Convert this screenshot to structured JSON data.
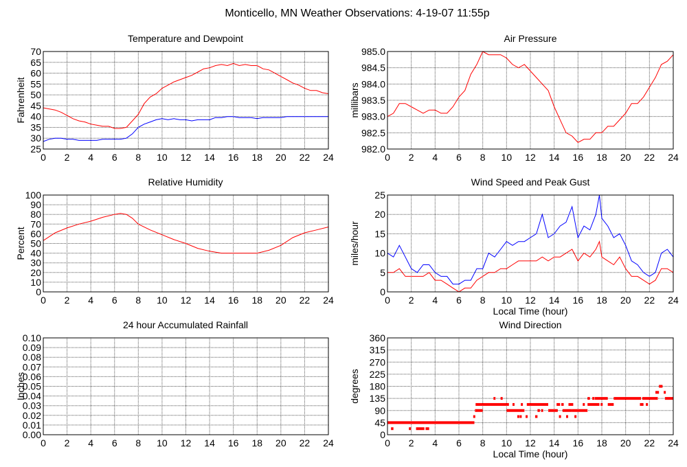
{
  "title": "Monticello, MN Weather Observations: 4-19-07 11:55p",
  "chart_data": [
    {
      "type": "line",
      "title": "Temperature and Dewpoint",
      "xlabel": "",
      "ylabel": "Fahrenheit",
      "xlim": [
        0,
        24
      ],
      "ylim": [
        25,
        70
      ],
      "xticks": [
        "0",
        "2",
        "4",
        "6",
        "8",
        "10",
        "12",
        "14",
        "16",
        "18",
        "20",
        "22",
        "24"
      ],
      "yticks": [
        "25",
        "30",
        "35",
        "40",
        "45",
        "50",
        "55",
        "60",
        "65",
        "70"
      ],
      "grid": true,
      "series": [
        {
          "name": "Temperature",
          "color": "#ff0000",
          "x": [
            0,
            0.5,
            1,
            1.5,
            2,
            2.5,
            3,
            3.5,
            4,
            4.5,
            5,
            5.5,
            6,
            6.5,
            7,
            7.5,
            8,
            8.5,
            9,
            9.5,
            10,
            10.5,
            11,
            11.5,
            12,
            12.5,
            13,
            13.5,
            14,
            14.5,
            15,
            15.5,
            16,
            16.5,
            17,
            17.5,
            18,
            18.5,
            19,
            19.5,
            20,
            20.5,
            21,
            21.5,
            22,
            22.5,
            23,
            23.5,
            24
          ],
          "y": [
            44,
            43.5,
            43,
            42,
            40.5,
            39,
            38,
            37.5,
            36.5,
            36,
            35.5,
            35.5,
            34.5,
            34.5,
            35,
            38,
            41,
            46,
            49,
            50.5,
            53,
            54.5,
            56,
            57,
            58,
            59,
            60.5,
            62,
            62.5,
            63.5,
            64,
            63.5,
            64.5,
            63.5,
            64,
            63.5,
            63.5,
            62,
            61.5,
            60,
            58.5,
            57,
            55.5,
            54.5,
            53,
            52,
            52,
            51,
            50.5
          ]
        },
        {
          "name": "Dewpoint",
          "color": "#0000ff",
          "x": [
            0,
            0.5,
            1,
            1.5,
            2,
            2.5,
            3,
            3.5,
            4,
            4.5,
            5,
            5.5,
            6,
            6.5,
            7,
            7.5,
            8,
            8.5,
            9,
            9.5,
            10,
            10.5,
            11,
            11.5,
            12,
            12.5,
            13,
            13.5,
            14,
            14.5,
            15,
            15.5,
            16,
            16.5,
            17,
            17.5,
            18,
            18.5,
            19,
            19.5,
            20,
            20.5,
            21,
            21.5,
            22,
            22.5,
            23,
            23.5,
            24
          ],
          "y": [
            28.5,
            29.5,
            30,
            30,
            29.5,
            29.5,
            29,
            29,
            29,
            29,
            29.5,
            29.5,
            29.5,
            29.5,
            30,
            32,
            35,
            36.5,
            37.5,
            38.5,
            39,
            38.5,
            39,
            38.5,
            38.5,
            38,
            38.5,
            38.5,
            38.5,
            39.5,
            39.5,
            40,
            40,
            39.5,
            39.5,
            39.5,
            39,
            39.5,
            39.5,
            39.5,
            39.5,
            40,
            40,
            40,
            40,
            40,
            40,
            40,
            40
          ]
        }
      ]
    },
    {
      "type": "line",
      "title": "Air Pressure",
      "xlabel": "",
      "ylabel": "millibars",
      "xlim": [
        0,
        24
      ],
      "ylim": [
        982.0,
        985.0
      ],
      "xticks": [
        "0",
        "2",
        "4",
        "6",
        "8",
        "10",
        "12",
        "14",
        "16",
        "18",
        "20",
        "22",
        "24"
      ],
      "yticks": [
        "982.0",
        "982.5",
        "983.0",
        "983.5",
        "984.0",
        "984.5",
        "985.0"
      ],
      "grid": true,
      "series": [
        {
          "name": "Pressure",
          "color": "#ff0000",
          "x": [
            0,
            0.5,
            1,
            1.5,
            2,
            2.5,
            3,
            3.5,
            4,
            4.5,
            5,
            5.5,
            6,
            6.5,
            7,
            7.5,
            8,
            8.5,
            9,
            9.5,
            10,
            10.5,
            11,
            11.5,
            12,
            12.5,
            13,
            13.5,
            14,
            14.5,
            15,
            15.5,
            16,
            16.5,
            17,
            17.5,
            18,
            18.5,
            19,
            19.5,
            20,
            20.5,
            21,
            21.5,
            22,
            22.5,
            23,
            23.5,
            24
          ],
          "y": [
            983.0,
            983.1,
            983.4,
            983.4,
            983.3,
            983.2,
            983.1,
            983.2,
            983.2,
            983.1,
            983.1,
            983.3,
            983.6,
            983.8,
            984.3,
            984.6,
            985.0,
            984.9,
            984.9,
            984.9,
            984.8,
            984.6,
            984.5,
            984.6,
            984.4,
            984.2,
            984.0,
            983.8,
            983.3,
            982.9,
            982.5,
            982.4,
            982.2,
            982.3,
            982.3,
            982.5,
            982.5,
            982.7,
            982.7,
            982.9,
            983.1,
            983.4,
            983.4,
            983.6,
            983.9,
            984.2,
            984.6,
            984.7,
            984.9
          ]
        }
      ]
    },
    {
      "type": "line",
      "title": "Relative Humidity",
      "xlabel": "",
      "ylabel": "Percent",
      "xlim": [
        0,
        24
      ],
      "ylim": [
        0,
        100
      ],
      "xticks": [
        "0",
        "2",
        "4",
        "6",
        "8",
        "10",
        "12",
        "14",
        "16",
        "18",
        "20",
        "22",
        "24"
      ],
      "yticks": [
        "0",
        "10",
        "20",
        "30",
        "40",
        "50",
        "60",
        "70",
        "80",
        "90",
        "100"
      ],
      "grid": true,
      "series": [
        {
          "name": "Relative Humidity",
          "color": "#ff0000",
          "x": [
            0,
            1,
            2,
            3,
            4,
            5,
            6,
            6.5,
            7,
            7.5,
            8,
            9,
            10,
            11,
            12,
            13,
            14,
            15,
            16,
            17,
            18,
            19,
            20,
            21,
            22,
            23,
            24
          ],
          "y": [
            53,
            61,
            66,
            70,
            73,
            77,
            80,
            81,
            80,
            76,
            70,
            64,
            59,
            54,
            50,
            45,
            42,
            40,
            40,
            40,
            40,
            43,
            48,
            56,
            61,
            64,
            67
          ]
        }
      ]
    },
    {
      "type": "line",
      "title": "Wind Speed and Peak Gust",
      "xlabel": "Local Time (hour)",
      "ylabel": "miles/hour",
      "xlim": [
        0,
        24
      ],
      "ylim": [
        0,
        25
      ],
      "xticks": [
        "0",
        "2",
        "4",
        "6",
        "8",
        "10",
        "12",
        "14",
        "16",
        "18",
        "20",
        "22",
        "24"
      ],
      "yticks": [
        "0",
        "5",
        "10",
        "15",
        "20",
        "25"
      ],
      "grid": true,
      "series": [
        {
          "name": "Peak Gust",
          "color": "#0000ff",
          "x": [
            0,
            0.5,
            1,
            1.5,
            2,
            2.5,
            3,
            3.5,
            4,
            4.5,
            5,
            5.5,
            6,
            6.5,
            7,
            7.5,
            8,
            8.5,
            9,
            9.5,
            10,
            10.5,
            11,
            11.5,
            12,
            12.5,
            13,
            13.5,
            14,
            14.5,
            15,
            15.5,
            16,
            16.5,
            17,
            17.5,
            17.8,
            18,
            18.5,
            19,
            19.5,
            20,
            20.5,
            21,
            21.5,
            22,
            22.5,
            23,
            23.5,
            24
          ],
          "y": [
            10,
            9,
            12,
            9,
            6,
            5,
            7,
            7,
            5,
            4,
            4,
            2,
            2,
            3,
            3,
            6,
            6,
            10,
            9,
            11,
            13,
            12,
            13,
            13,
            14,
            15,
            20,
            14,
            15,
            17,
            18,
            22,
            14,
            17,
            16,
            20,
            25,
            19,
            17,
            14,
            15,
            12,
            8,
            7,
            5,
            4,
            5,
            10,
            11,
            9
          ]
        },
        {
          "name": "Wind Speed",
          "color": "#ff0000",
          "x": [
            0,
            0.5,
            1,
            1.5,
            2,
            2.5,
            3,
            3.5,
            4,
            4.5,
            5,
            5.5,
            6,
            6.5,
            7,
            7.5,
            8,
            8.5,
            9,
            9.5,
            10,
            10.5,
            11,
            11.5,
            12,
            12.5,
            13,
            13.5,
            14,
            14.5,
            15,
            15.5,
            16,
            16.5,
            17,
            17.5,
            17.8,
            18,
            18.5,
            19,
            19.5,
            20,
            20.5,
            21,
            21.5,
            22,
            22.5,
            23,
            23.5,
            24
          ],
          "y": [
            5,
            5,
            6,
            4,
            4,
            4,
            4,
            5,
            3,
            3,
            2,
            1,
            0,
            1,
            1,
            3,
            4,
            5,
            5,
            6,
            6,
            7,
            8,
            8,
            8,
            8,
            9,
            8,
            9,
            9,
            10,
            11,
            8,
            10,
            9,
            11,
            13,
            9,
            8,
            7,
            9,
            6,
            4,
            4,
            3,
            2,
            3,
            6,
            6,
            5
          ]
        }
      ]
    },
    {
      "type": "line",
      "title": "24 hour Accumulated Rainfall",
      "xlabel": "",
      "ylabel": "Inches",
      "xlim": [
        0,
        24
      ],
      "ylim": [
        0,
        0.1
      ],
      "xticks": [
        "0",
        "2",
        "4",
        "6",
        "8",
        "10",
        "12",
        "14",
        "16",
        "18",
        "20",
        "22",
        "24"
      ],
      "yticks": [
        "0.00",
        "0.01",
        "0.02",
        "0.03",
        "0.04",
        "0.05",
        "0.06",
        "0.07",
        "0.08",
        "0.09",
        "0.10"
      ],
      "grid": true,
      "series": [
        {
          "name": "Rainfall",
          "color": "#ff0000",
          "x": [
            0,
            24
          ],
          "y": [
            0,
            0
          ]
        }
      ]
    },
    {
      "type": "scatter",
      "title": "Wind Direction",
      "xlabel": "Local Time (hour)",
      "ylabel": "degrees",
      "xlim": [
        0,
        24
      ],
      "ylim": [
        0,
        360
      ],
      "xticks": [
        "0",
        "2",
        "4",
        "6",
        "8",
        "10",
        "12",
        "14",
        "16",
        "18",
        "20",
        "22",
        "24"
      ],
      "yticks": [
        "0",
        "45",
        "90",
        "135",
        "180",
        "225",
        "270",
        "315",
        "360"
      ],
      "grid": true,
      "series": [
        {
          "name": "Wind Direction",
          "color": "#ff0000",
          "runs": [
            [
              0,
              7.3,
              45
            ],
            [
              0.3,
              0.5,
              22.5
            ],
            [
              1.8,
              1.9,
              22.5
            ],
            [
              2.4,
              3.1,
              22.5
            ],
            [
              3.2,
              3.5,
              22.5
            ],
            [
              7.2,
              7.35,
              67.5
            ],
            [
              7.35,
              8,
              90
            ],
            [
              7.4,
              10.2,
              112.5
            ],
            [
              8.9,
              9.0,
              135
            ],
            [
              9.5,
              9.6,
              135
            ],
            [
              10,
              11.5,
              90
            ],
            [
              10.9,
              11.0,
              67.5
            ],
            [
              11.1,
              11.2,
              67.5
            ],
            [
              11.6,
              11.7,
              67.5
            ],
            [
              10.5,
              10.6,
              112.5
            ],
            [
              11.2,
              11.3,
              112.5
            ],
            [
              11.7,
              13.5,
              112.5
            ],
            [
              12.4,
              12.6,
              67.5
            ],
            [
              12.6,
              12.8,
              90
            ],
            [
              12.9,
              13.0,
              90
            ],
            [
              13.5,
              14.3,
              90
            ],
            [
              14.2,
              14.5,
              112.5
            ],
            [
              14.6,
              14.8,
              112.5
            ],
            [
              14.4,
              14.5,
              67.5
            ],
            [
              14.7,
              15.5,
              90
            ],
            [
              15.0,
              15.1,
              67.5
            ],
            [
              15.2,
              15.6,
              112.5
            ],
            [
              15.5,
              16.8,
              90
            ],
            [
              15.7,
              15.8,
              67.5
            ],
            [
              16.4,
              16.5,
              112.5
            ],
            [
              16.8,
              17.0,
              135
            ],
            [
              16.8,
              17.8,
              112.5
            ],
            [
              17.2,
              17.3,
              135
            ],
            [
              17.4,
              18.5,
              135
            ],
            [
              17.9,
              18.0,
              112.5
            ],
            [
              18.5,
              19.0,
              112.5
            ],
            [
              19.0,
              21.3,
              135
            ],
            [
              21.2,
              21.5,
              112.5
            ],
            [
              21.7,
              21.8,
              112.5
            ],
            [
              21.4,
              22.7,
              135
            ],
            [
              22.5,
              22.8,
              157.5
            ],
            [
              22.8,
              23.1,
              180
            ],
            [
              23.2,
              23.3,
              157.5
            ],
            [
              23.3,
              24,
              135
            ]
          ]
        }
      ]
    }
  ]
}
